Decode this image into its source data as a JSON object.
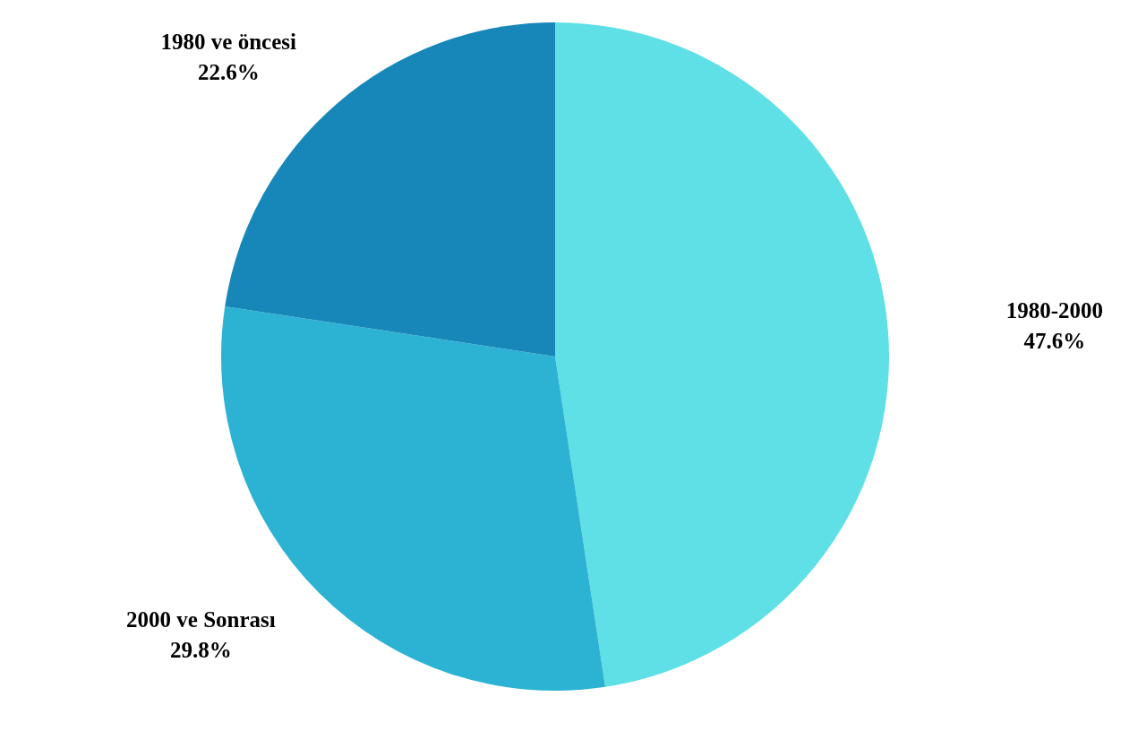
{
  "chart_data": {
    "type": "pie",
    "categories": [
      "1980-2000",
      "2000 ve Sonrası",
      "1980 ve öncesi"
    ],
    "values": [
      47.6,
      29.8,
      22.6
    ],
    "colors": [
      "#5ee0e6",
      "#2cb3d4",
      "#1787b9"
    ],
    "value_labels": [
      "47.6%",
      "29.8%",
      "22.6%"
    ],
    "legend": false
  }
}
